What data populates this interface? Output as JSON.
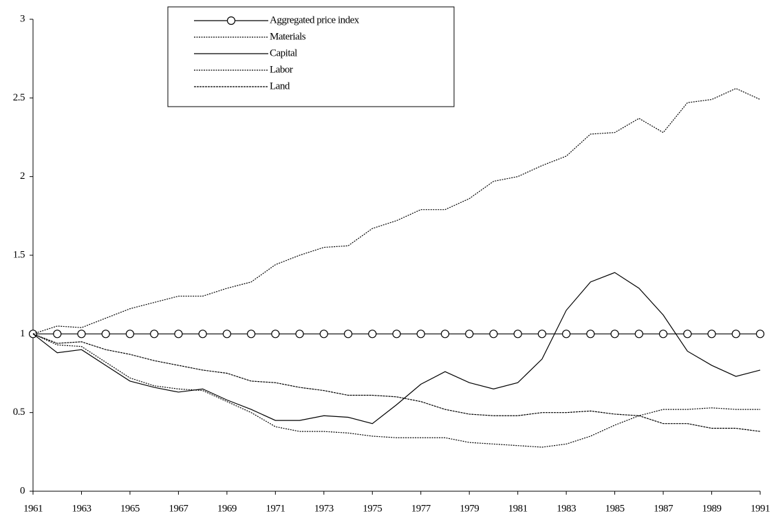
{
  "chart_data": {
    "type": "line",
    "x": [
      1961,
      1962,
      1963,
      1964,
      1965,
      1966,
      1967,
      1968,
      1969,
      1970,
      1971,
      1972,
      1973,
      1974,
      1975,
      1976,
      1977,
      1978,
      1979,
      1980,
      1981,
      1982,
      1983,
      1984,
      1985,
      1986,
      1987,
      1988,
      1989,
      1990,
      1991
    ],
    "xlim": [
      1961,
      1991
    ],
    "xticks": [
      1961,
      1963,
      1965,
      1967,
      1969,
      1971,
      1973,
      1975,
      1977,
      1979,
      1981,
      1983,
      1985,
      1987,
      1989,
      1991
    ],
    "ylim": [
      0,
      3
    ],
    "yticks": [
      0,
      0.5,
      1,
      1.5,
      2,
      2.5,
      3
    ],
    "legend": "upper center",
    "series": [
      {
        "name": "Aggregated price index",
        "color": "#000000",
        "marker": "circle",
        "values": [
          1,
          1,
          1,
          1,
          1,
          1,
          1,
          1,
          1,
          1,
          1,
          1,
          1,
          1,
          1,
          1,
          1,
          1,
          1,
          1,
          1,
          1,
          1,
          1,
          1,
          1,
          1,
          1,
          1,
          1,
          1
        ]
      },
      {
        "name": "Materials",
        "color": "#000000",
        "dash": "2,1.5",
        "values": [
          1.0,
          1.05,
          1.04,
          1.1,
          1.16,
          1.2,
          1.24,
          1.24,
          1.29,
          1.33,
          1.44,
          1.5,
          1.55,
          1.56,
          1.67,
          1.72,
          1.79,
          1.79,
          1.86,
          1.97,
          2.0,
          2.07,
          2.13,
          2.27,
          2.28,
          2.37,
          2.28,
          2.47,
          2.49,
          2.56,
          2.49
        ]
      },
      {
        "name": "Capital",
        "color": "#000000",
        "values": [
          1.0,
          0.88,
          0.9,
          0.8,
          0.7,
          0.66,
          0.63,
          0.65,
          0.58,
          0.52,
          0.45,
          0.45,
          0.48,
          0.47,
          0.43,
          0.55,
          0.68,
          0.76,
          0.69,
          0.65,
          0.69,
          0.84,
          1.15,
          1.33,
          1.39,
          1.29,
          1.12,
          0.89,
          0.8,
          0.73,
          0.77
        ]
      },
      {
        "name": "Labor",
        "color": "#000000",
        "dash": "2,1.5",
        "values": [
          1.0,
          0.93,
          0.92,
          0.82,
          0.72,
          0.67,
          0.65,
          0.64,
          0.57,
          0.5,
          0.41,
          0.38,
          0.38,
          0.37,
          0.35,
          0.34,
          0.34,
          0.34,
          0.31,
          0.3,
          0.29,
          0.28,
          0.3,
          0.35,
          0.42,
          0.48,
          0.52,
          0.52,
          0.53,
          0.52,
          0.52
        ]
      },
      {
        "name": "Land",
        "color": "#000000",
        "dash": "3,1",
        "values": [
          1.0,
          0.94,
          0.95,
          0.9,
          0.87,
          0.83,
          0.8,
          0.77,
          0.75,
          0.7,
          0.69,
          0.66,
          0.64,
          0.61,
          0.61,
          0.6,
          0.57,
          0.52,
          0.49,
          0.48,
          0.48,
          0.5,
          0.5,
          0.51,
          0.49,
          0.48,
          0.43,
          0.43,
          0.4,
          0.4,
          0.38
        ]
      }
    ]
  }
}
